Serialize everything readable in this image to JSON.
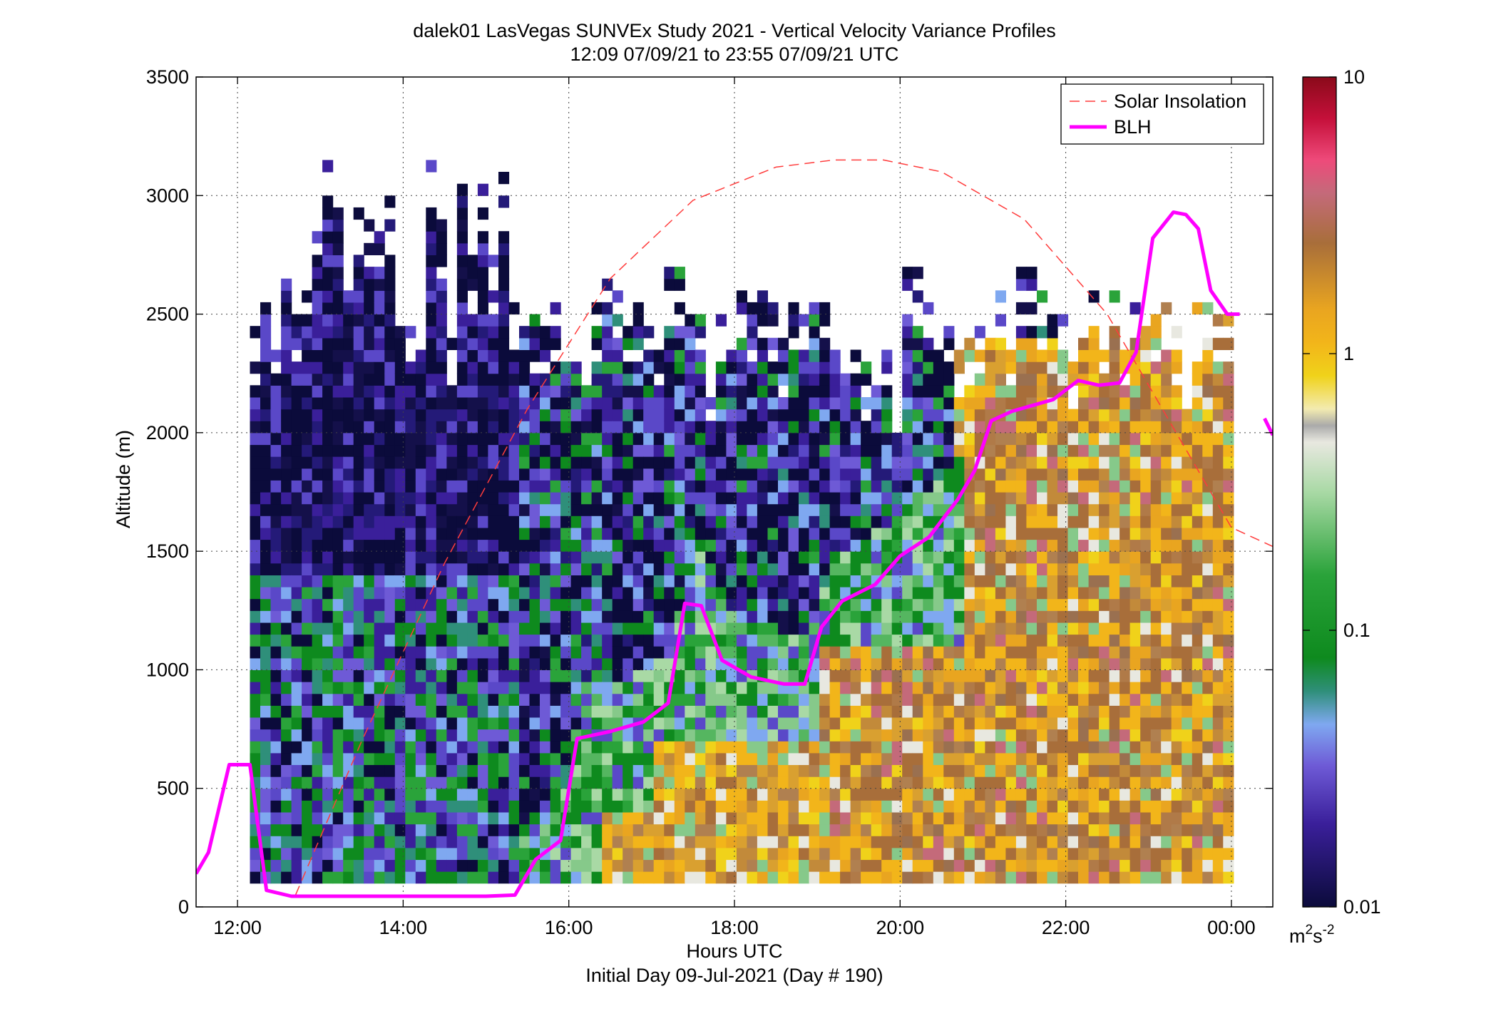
{
  "chart_data": {
    "type": "heatmap",
    "title": "dalek01 LasVegas SUNVEx Study 2021 - Vertical Velocity Variance Profiles",
    "subtitle": "12:09 07/09/21 to 23:55 07/09/21  UTC",
    "xlabel": "Hours UTC",
    "xlabel2": "Initial Day 09-Jul-2021 (Day # 190)",
    "ylabel": "Altitude (m)",
    "xlim": [
      11.5,
      24.5
    ],
    "ylim": [
      0,
      3500
    ],
    "x_ticks": [
      12,
      14,
      16,
      18,
      20,
      22,
      24
    ],
    "x_tick_labels": [
      "12:00",
      "14:00",
      "16:00",
      "18:00",
      "20:00",
      "22:00",
      "00:00"
    ],
    "y_ticks": [
      0,
      500,
      1000,
      1500,
      2000,
      2500,
      3000,
      3500
    ],
    "y_tick_labels": [
      "0",
      "500",
      "1000",
      "1500",
      "2000",
      "2500",
      "3000",
      "3500"
    ],
    "grid": true,
    "legend_position": "top-right",
    "colorbar": {
      "scale": "log",
      "min": 0.01,
      "max": 10,
      "tick_labels": [
        "10",
        "1",
        "0.1",
        "0.01"
      ],
      "tick_values": [
        10,
        1,
        0.1,
        0.01
      ],
      "unit_label": "m",
      "unit_sup1": "2",
      "unit_mid": "s",
      "unit_sup2": "-2"
    },
    "series": [
      {
        "name": "Solar Insolation",
        "style": "dashed",
        "color": "#ff3b3b",
        "x": [
          12.7,
          13.5,
          14.5,
          15.5,
          16.5,
          17.5,
          18.5,
          19.2,
          19.8,
          20.5,
          21.5,
          22.5,
          23.5,
          24.0,
          24.5
        ],
        "y": [
          50,
          700,
          1450,
          2100,
          2650,
          2980,
          3120,
          3150,
          3150,
          3100,
          2900,
          2500,
          1900,
          1600,
          1520
        ]
      },
      {
        "name": "BLH",
        "style": "solid",
        "color": "#ff00ff",
        "x": [
          11.5,
          11.65,
          11.9,
          12.15,
          12.35,
          12.65,
          13.0,
          14.0,
          15.0,
          15.35,
          15.6,
          15.9,
          16.1,
          16.5,
          16.9,
          17.2,
          17.4,
          17.6,
          17.85,
          18.2,
          18.6,
          18.85,
          19.05,
          19.3,
          19.7,
          20.0,
          20.35,
          20.7,
          20.9,
          21.1,
          21.35,
          21.85,
          22.15,
          22.4,
          22.65,
          22.85,
          23.05,
          23.3,
          23.45,
          23.6,
          23.75,
          23.95,
          24.1
        ],
        "y": [
          140,
          230,
          600,
          600,
          70,
          45,
          45,
          45,
          45,
          50,
          200,
          280,
          710,
          740,
          780,
          860,
          1280,
          1270,
          1040,
          970,
          940,
          940,
          1180,
          1290,
          1360,
          1480,
          1560,
          1720,
          1840,
          2050,
          2090,
          2140,
          2220,
          2200,
          2210,
          2340,
          2820,
          2930,
          2920,
          2860,
          2600,
          2500,
          2500
        ]
      },
      {
        "name": "",
        "style": "solid",
        "color": "#ff00ff",
        "x": [
          24.4,
          24.5
        ],
        "y": [
          2060,
          1990
        ]
      }
    ]
  }
}
